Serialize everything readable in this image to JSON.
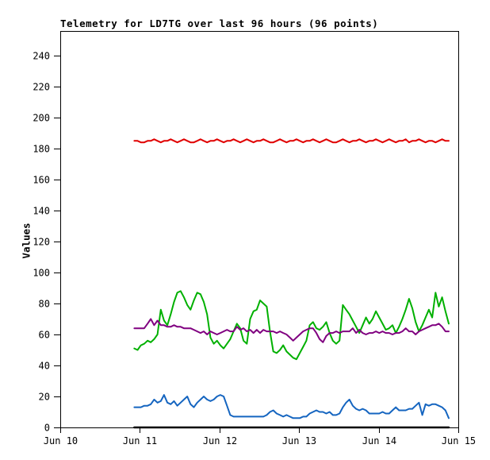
{
  "title": "Telemetry for LD7TG over last 96 hours (96 points)",
  "chart_data": {
    "type": "line",
    "title": "Telemetry for LD7TG over last 96 hours (96 points)",
    "xlabel": "",
    "ylabel": "Values",
    "ylim": [
      0,
      256
    ],
    "y_ticks": [
      0,
      20,
      40,
      60,
      80,
      100,
      120,
      140,
      160,
      180,
      200,
      220,
      240
    ],
    "x_ticks": [
      "Jun 10",
      "Jun 11",
      "Jun 12",
      "Jun 13",
      "Jun 14",
      "Jun 15"
    ],
    "grid": false,
    "legend": "none",
    "points": 96,
    "x_start_day": 0.93,
    "x_end_day": 4.88,
    "background": "#ffffff",
    "axis_color": "#000000",
    "series": [
      {
        "name": "red",
        "color": "#e00000",
        "width": 2,
        "values": [
          185,
          185,
          184,
          184,
          185,
          185,
          186,
          185,
          184,
          185,
          185,
          186,
          185,
          184,
          185,
          186,
          185,
          184,
          184,
          185,
          186,
          185,
          184,
          185,
          185,
          186,
          185,
          184,
          185,
          185,
          186,
          185,
          184,
          185,
          186,
          185,
          184,
          185,
          185,
          186,
          185,
          184,
          184,
          185,
          186,
          185,
          184,
          185,
          185,
          186,
          185,
          184,
          185,
          185,
          186,
          185,
          184,
          185,
          186,
          185,
          184,
          184,
          185,
          186,
          185,
          184,
          185,
          185,
          186,
          185,
          184,
          185,
          185,
          186,
          185,
          184,
          185,
          186,
          185,
          184,
          185,
          185,
          186,
          184,
          185,
          185,
          186,
          185,
          184,
          185,
          185,
          184,
          185,
          186,
          185,
          185
        ]
      },
      {
        "name": "green",
        "color": "#00b000",
        "width": 2,
        "values": [
          51,
          50,
          53,
          54,
          56,
          55,
          57,
          60,
          76,
          69,
          66,
          73,
          81,
          87,
          88,
          84,
          79,
          76,
          82,
          87,
          86,
          81,
          73,
          58,
          54,
          56,
          53,
          51,
          54,
          57,
          62,
          67,
          64,
          56,
          54,
          70,
          75,
          76,
          82,
          80,
          78,
          62,
          49,
          48,
          50,
          53,
          49,
          47,
          45,
          44,
          48,
          52,
          56,
          66,
          68,
          64,
          63,
          65,
          68,
          61,
          56,
          54,
          56,
          79,
          76,
          73,
          69,
          65,
          61,
          66,
          71,
          67,
          70,
          75,
          71,
          67,
          63,
          64,
          66,
          61,
          65,
          70,
          76,
          83,
          77,
          68,
          62,
          66,
          71,
          76,
          71,
          87,
          78,
          84,
          75,
          67
        ]
      },
      {
        "name": "purple",
        "color": "#800080",
        "width": 2,
        "values": [
          64,
          64,
          64,
          64,
          67,
          70,
          66,
          69,
          66,
          66,
          65,
          65,
          66,
          65,
          65,
          64,
          64,
          64,
          63,
          62,
          61,
          62,
          60,
          62,
          61,
          60,
          61,
          62,
          63,
          62,
          62,
          65,
          63,
          64,
          62,
          63,
          61,
          63,
          61,
          63,
          62,
          62,
          62,
          61,
          62,
          61,
          60,
          58,
          56,
          58,
          60,
          62,
          63,
          64,
          64,
          61,
          57,
          55,
          59,
          61,
          61,
          62,
          61,
          62,
          62,
          62,
          64,
          61,
          63,
          61,
          60,
          61,
          61,
          62,
          61,
          62,
          61,
          61,
          60,
          61,
          61,
          62,
          64,
          62,
          62,
          60,
          62,
          63,
          64,
          65,
          66,
          66,
          67,
          65,
          62,
          62
        ]
      },
      {
        "name": "blue",
        "color": "#1565c0",
        "width": 2,
        "values": [
          13,
          13,
          13,
          14,
          14,
          15,
          18,
          16,
          17,
          21,
          16,
          15,
          17,
          14,
          16,
          18,
          20,
          15,
          13,
          16,
          18,
          20,
          18,
          17,
          18,
          20,
          21,
          20,
          14,
          8,
          7,
          7,
          7,
          7,
          7,
          7,
          7,
          7,
          7,
          7,
          8,
          10,
          11,
          9,
          8,
          7,
          8,
          7,
          6,
          6,
          6,
          7,
          7,
          9,
          10,
          11,
          10,
          10,
          9,
          10,
          8,
          8,
          9,
          13,
          16,
          18,
          14,
          12,
          11,
          12,
          11,
          9,
          9,
          9,
          9,
          10,
          9,
          9,
          11,
          13,
          11,
          11,
          11,
          12,
          12,
          14,
          16,
          8,
          15,
          14,
          15,
          15,
          14,
          13,
          11,
          6
        ]
      },
      {
        "name": "black",
        "color": "#000000",
        "width": 2.5,
        "values": [
          0,
          0,
          0,
          0,
          0,
          0,
          0,
          0,
          0,
          0,
          0,
          0,
          0,
          0,
          0,
          0,
          0,
          0,
          0,
          0,
          0,
          0,
          0,
          0,
          0,
          0,
          0,
          0,
          0,
          0,
          0,
          0,
          0,
          0,
          0,
          0,
          0,
          0,
          0,
          0,
          0,
          0,
          0,
          0,
          0,
          0,
          0,
          0,
          0,
          0,
          0,
          0,
          0,
          0,
          0,
          0,
          0,
          0,
          0,
          0,
          0,
          0,
          0,
          0,
          0,
          0,
          0,
          0,
          0,
          0,
          0,
          0,
          0,
          0,
          0,
          0,
          0,
          0,
          0,
          0,
          0,
          0,
          0,
          0,
          0,
          0,
          0,
          0,
          0,
          0,
          0,
          0,
          0,
          0,
          0,
          0
        ]
      }
    ]
  }
}
